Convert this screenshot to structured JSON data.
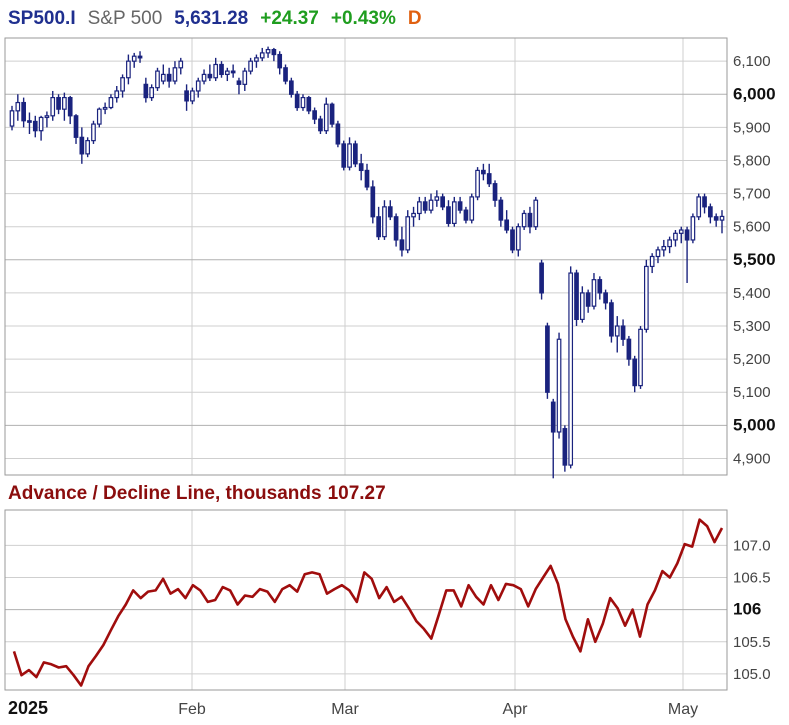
{
  "header": {
    "symbol": "SP500.I",
    "name": "S&P 500",
    "last": "5,631.28",
    "change": "+24.37",
    "percent": "+0.43%",
    "period": "D"
  },
  "colors": {
    "candle": "#1a237e",
    "line": "#a00d0d",
    "grid": "#cfcfcf",
    "header_blue": "#1f2f8f",
    "header_green": "#1f9d1f",
    "header_orange": "#e06010",
    "subtitle": "#8b0d0d"
  },
  "x_labels": [
    "2025",
    "Feb",
    "Mar",
    "Apr",
    "May"
  ],
  "chart_data": [
    {
      "type": "candlestick",
      "title": "SP500.I S&P 500",
      "y_ticks": [
        "6,100",
        "6,000",
        "5,900",
        "5,800",
        "5,700",
        "5,600",
        "5,500",
        "5,400",
        "5,300",
        "5,200",
        "5,100",
        "5,000",
        "4,900"
      ],
      "y_ticks_major": [
        "6,000",
        "5,500",
        "5,000"
      ],
      "ylim": [
        4850,
        6170
      ],
      "grid": true,
      "ohlc": [
        [
          5904,
          5965,
          5891,
          5950
        ],
        [
          5950,
          6000,
          5920,
          5975
        ],
        [
          5975,
          5990,
          5900,
          5920
        ],
        [
          5920,
          5945,
          5880,
          5918
        ],
        [
          5918,
          5935,
          5870,
          5890
        ],
        [
          5890,
          5935,
          5860,
          5930
        ],
        [
          5930,
          5948,
          5900,
          5935
        ],
        [
          5935,
          6010,
          5920,
          5990
        ],
        [
          5990,
          6000,
          5940,
          5955
        ],
        [
          5955,
          6005,
          5920,
          5990
        ],
        [
          5990,
          5995,
          5910,
          5935
        ],
        [
          5935,
          5940,
          5850,
          5870
        ],
        [
          5870,
          5900,
          5790,
          5820
        ],
        [
          5820,
          5870,
          5810,
          5860
        ],
        [
          5860,
          5920,
          5850,
          5910
        ],
        [
          5910,
          5960,
          5900,
          5955
        ],
        [
          5955,
          5975,
          5940,
          5960
        ],
        [
          5960,
          6000,
          5955,
          5990
        ],
        [
          5990,
          6025,
          5975,
          6010
        ],
        [
          6010,
          6060,
          5990,
          6050
        ],
        [
          6050,
          6120,
          6030,
          6100
        ],
        [
          6100,
          6125,
          6080,
          6115
        ],
        [
          6115,
          6130,
          6095,
          6110
        ],
        [
          6030,
          6050,
          5975,
          5990
        ],
        [
          5990,
          6030,
          5980,
          6020
        ],
        [
          6020,
          6080,
          6010,
          6070
        ],
        [
          6040,
          6090,
          6030,
          6060
        ],
        [
          6060,
          6080,
          6020,
          6040
        ],
        [
          6040,
          6100,
          6030,
          6080
        ],
        [
          6080,
          6110,
          6060,
          6100
        ],
        [
          6010,
          6030,
          5950,
          5980
        ],
        [
          5980,
          6020,
          5970,
          6010
        ],
        [
          6010,
          6050,
          5990,
          6040
        ],
        [
          6040,
          6075,
          6030,
          6060
        ],
        [
          6060,
          6090,
          6040,
          6050
        ],
        [
          6050,
          6110,
          6040,
          6090
        ],
        [
          6090,
          6100,
          6050,
          6060
        ],
        [
          6060,
          6080,
          6040,
          6070
        ],
        [
          6070,
          6090,
          6050,
          6065
        ],
        [
          6040,
          6050,
          6000,
          6030
        ],
        [
          6030,
          6080,
          6010,
          6070
        ],
        [
          6070,
          6110,
          6060,
          6100
        ],
        [
          6100,
          6120,
          6080,
          6110
        ],
        [
          6110,
          6140,
          6100,
          6125
        ],
        [
          6125,
          6144,
          6110,
          6135
        ],
        [
          6135,
          6140,
          6100,
          6120
        ],
        [
          6120,
          6130,
          6060,
          6080
        ],
        [
          6080,
          6090,
          6030,
          6040
        ],
        [
          6040,
          6050,
          5990,
          6000
        ],
        [
          6000,
          6010,
          5950,
          5960
        ],
        [
          5960,
          6000,
          5950,
          5990
        ],
        [
          5990,
          5995,
          5940,
          5950
        ],
        [
          5950,
          5960,
          5910,
          5925
        ],
        [
          5925,
          5935,
          5880,
          5890
        ],
        [
          5890,
          5990,
          5880,
          5970
        ],
        [
          5970,
          5975,
          5900,
          5910
        ],
        [
          5910,
          5920,
          5840,
          5850
        ],
        [
          5850,
          5860,
          5770,
          5780
        ],
        [
          5780,
          5870,
          5770,
          5850
        ],
        [
          5850,
          5860,
          5780,
          5790
        ],
        [
          5790,
          5820,
          5740,
          5770
        ],
        [
          5770,
          5790,
          5710,
          5720
        ],
        [
          5720,
          5740,
          5610,
          5630
        ],
        [
          5630,
          5660,
          5560,
          5570
        ],
        [
          5570,
          5680,
          5560,
          5660
        ],
        [
          5660,
          5680,
          5620,
          5630
        ],
        [
          5630,
          5640,
          5540,
          5560
        ],
        [
          5560,
          5600,
          5510,
          5530
        ],
        [
          5530,
          5650,
          5520,
          5630
        ],
        [
          5630,
          5660,
          5600,
          5640
        ],
        [
          5640,
          5690,
          5620,
          5675
        ],
        [
          5675,
          5690,
          5640,
          5650
        ],
        [
          5650,
          5700,
          5640,
          5680
        ],
        [
          5680,
          5710,
          5660,
          5690
        ],
        [
          5690,
          5700,
          5650,
          5660
        ],
        [
          5660,
          5680,
          5600,
          5610
        ],
        [
          5610,
          5690,
          5600,
          5675
        ],
        [
          5675,
          5690,
          5640,
          5650
        ],
        [
          5650,
          5660,
          5610,
          5620
        ],
        [
          5620,
          5700,
          5610,
          5690
        ],
        [
          5690,
          5780,
          5680,
          5770
        ],
        [
          5770,
          5790,
          5740,
          5760
        ],
        [
          5760,
          5790,
          5720,
          5730
        ],
        [
          5730,
          5740,
          5660,
          5680
        ],
        [
          5680,
          5690,
          5600,
          5620
        ],
        [
          5620,
          5650,
          5580,
          5590
        ],
        [
          5590,
          5600,
          5520,
          5530
        ],
        [
          5530,
          5610,
          5510,
          5600
        ],
        [
          5600,
          5650,
          5590,
          5640
        ],
        [
          5640,
          5660,
          5580,
          5600
        ],
        [
          5600,
          5690,
          5590,
          5680
        ],
        [
          5490,
          5500,
          5380,
          5400
        ],
        [
          5300,
          5310,
          5080,
          5100
        ],
        [
          5070,
          5080,
          4840,
          4980
        ],
        [
          4980,
          5280,
          4960,
          5260
        ],
        [
          4990,
          5000,
          4860,
          4880
        ],
        [
          4880,
          5480,
          4870,
          5460
        ],
        [
          5460,
          5470,
          5300,
          5320
        ],
        [
          5320,
          5420,
          5310,
          5400
        ],
        [
          5400,
          5410,
          5340,
          5360
        ],
        [
          5360,
          5460,
          5350,
          5440
        ],
        [
          5440,
          5450,
          5380,
          5400
        ],
        [
          5400,
          5410,
          5350,
          5370
        ],
        [
          5370,
          5380,
          5250,
          5270
        ],
        [
          5270,
          5330,
          5220,
          5300
        ],
        [
          5300,
          5320,
          5240,
          5260
        ],
        [
          5260,
          5270,
          5180,
          5200
        ],
        [
          5200,
          5210,
          5100,
          5120
        ],
        [
          5120,
          5300,
          5110,
          5290
        ],
        [
          5290,
          5500,
          5280,
          5480
        ],
        [
          5480,
          5520,
          5460,
          5510
        ],
        [
          5510,
          5540,
          5490,
          5530
        ],
        [
          5530,
          5560,
          5510,
          5540
        ],
        [
          5540,
          5570,
          5520,
          5560
        ],
        [
          5560,
          5590,
          5540,
          5580
        ],
        [
          5580,
          5600,
          5550,
          5590
        ],
        [
          5590,
          5600,
          5430,
          5560
        ],
        [
          5560,
          5640,
          5550,
          5630
        ],
        [
          5630,
          5700,
          5620,
          5690
        ],
        [
          5690,
          5700,
          5640,
          5660
        ],
        [
          5660,
          5670,
          5610,
          5630
        ],
        [
          5630,
          5640,
          5600,
          5620
        ],
        [
          5620,
          5650,
          5580,
          5631
        ]
      ]
    },
    {
      "type": "line",
      "title": "Advance / Decline Line, thousands",
      "last_value": "107.27",
      "y_ticks": [
        "107.0",
        "106.5",
        "106",
        "105.5",
        "105.0"
      ],
      "y_ticks_major": [
        "106"
      ],
      "ylim": [
        104.75,
        107.55
      ],
      "grid": true,
      "values": [
        105.35,
        104.98,
        105.06,
        104.95,
        105.18,
        105.15,
        105.1,
        105.12,
        104.98,
        104.82,
        105.12,
        105.28,
        105.45,
        105.68,
        105.9,
        106.08,
        106.3,
        106.18,
        106.28,
        106.3,
        106.48,
        106.25,
        106.32,
        106.18,
        106.38,
        106.3,
        106.12,
        106.15,
        106.35,
        106.3,
        106.08,
        106.22,
        106.2,
        106.32,
        106.28,
        106.12,
        106.32,
        106.38,
        106.28,
        106.55,
        106.58,
        106.55,
        106.25,
        106.32,
        106.38,
        106.3,
        106.12,
        106.58,
        106.48,
        106.18,
        106.35,
        106.12,
        106.2,
        106.02,
        105.82,
        105.7,
        105.55,
        105.92,
        106.3,
        106.3,
        106.05,
        106.38,
        106.2,
        106.08,
        106.38,
        106.15,
        106.4,
        106.38,
        106.32,
        106.05,
        106.32,
        106.5,
        106.68,
        106.4,
        105.85,
        105.58,
        105.35,
        105.85,
        105.5,
        105.78,
        106.18,
        106.02,
        105.75,
        106.0,
        105.58,
        106.08,
        106.3,
        106.6,
        106.5,
        106.72,
        107.02,
        106.98,
        107.4,
        107.3,
        107.05,
        107.27
      ]
    }
  ]
}
